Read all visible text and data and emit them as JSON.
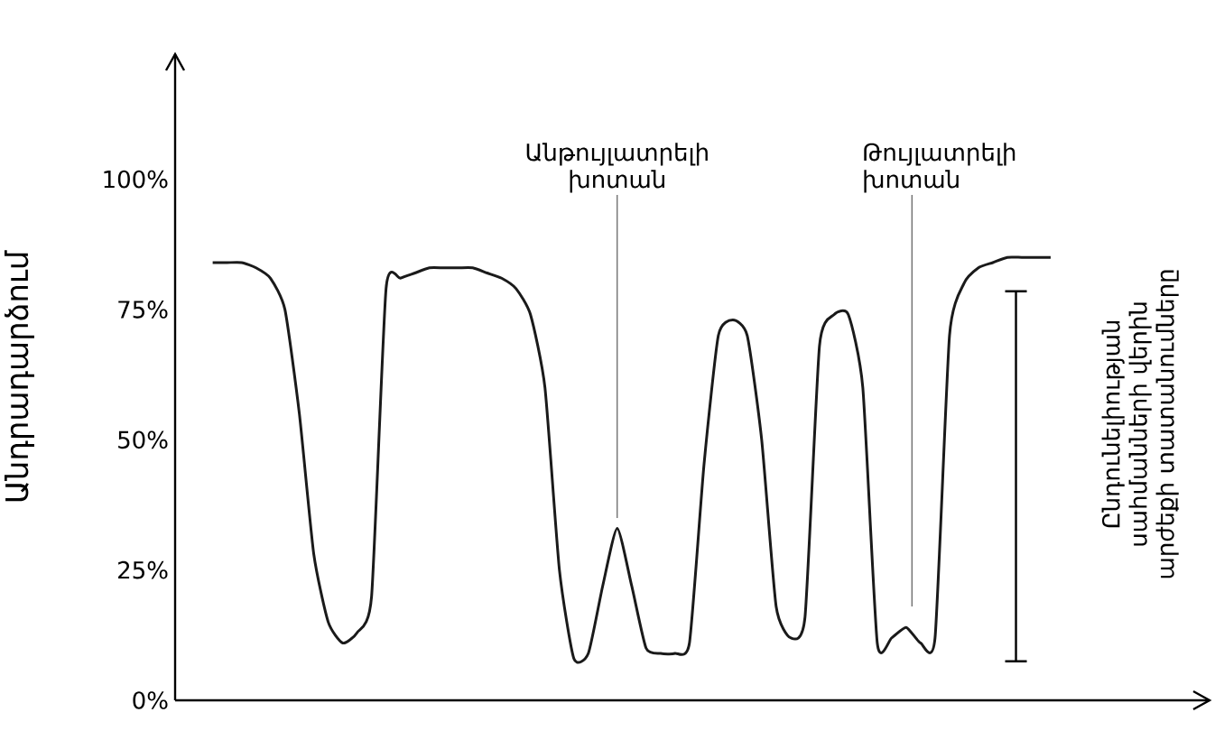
{
  "chart_data": {
    "type": "line",
    "ylabel": "Անդրադարձում",
    "categories": [
      null,
      null,
      null,
      null,
      null,
      null,
      null,
      null,
      null,
      null,
      null,
      null,
      null,
      null,
      null,
      null,
      null,
      null,
      null,
      null,
      null,
      null,
      null,
      null,
      null,
      null,
      null,
      null,
      null,
      null,
      null,
      null,
      null,
      null,
      null,
      null,
      null,
      null,
      null,
      null,
      null,
      null,
      null,
      null,
      null,
      null,
      null,
      null,
      null,
      null,
      null,
      null,
      null,
      null,
      null,
      null,
      null,
      null,
      null
    ],
    "values": [
      84,
      84,
      84,
      83,
      81,
      75,
      55,
      28,
      15,
      11,
      13,
      20,
      79,
      81,
      82,
      83,
      83,
      83,
      83,
      82,
      81,
      79,
      74,
      60,
      25,
      8,
      9,
      22,
      33,
      22,
      10,
      9,
      9,
      11,
      45,
      70,
      73,
      70,
      50,
      18,
      12,
      16,
      68,
      74,
      74,
      60,
      11,
      12,
      14,
      11,
      12,
      70,
      80,
      83,
      84,
      85,
      85,
      85,
      85
    ],
    "color": "#1a1a1a",
    "ylim": [
      0,
      124
    ],
    "yticks": [
      {
        "value": 0,
        "label": "0%"
      },
      {
        "value": 25,
        "label": "25%"
      },
      {
        "value": 50,
        "label": "50%"
      },
      {
        "value": 75,
        "label": "75%"
      },
      {
        "value": 100,
        "label": "100%"
      }
    ],
    "annotations": [
      "Անթույլատրելի խոտան",
      "Թույլատրելի խոտան",
      "Ընդունելիության սահմանների վերին արժեքի տատանումները"
    ]
  }
}
